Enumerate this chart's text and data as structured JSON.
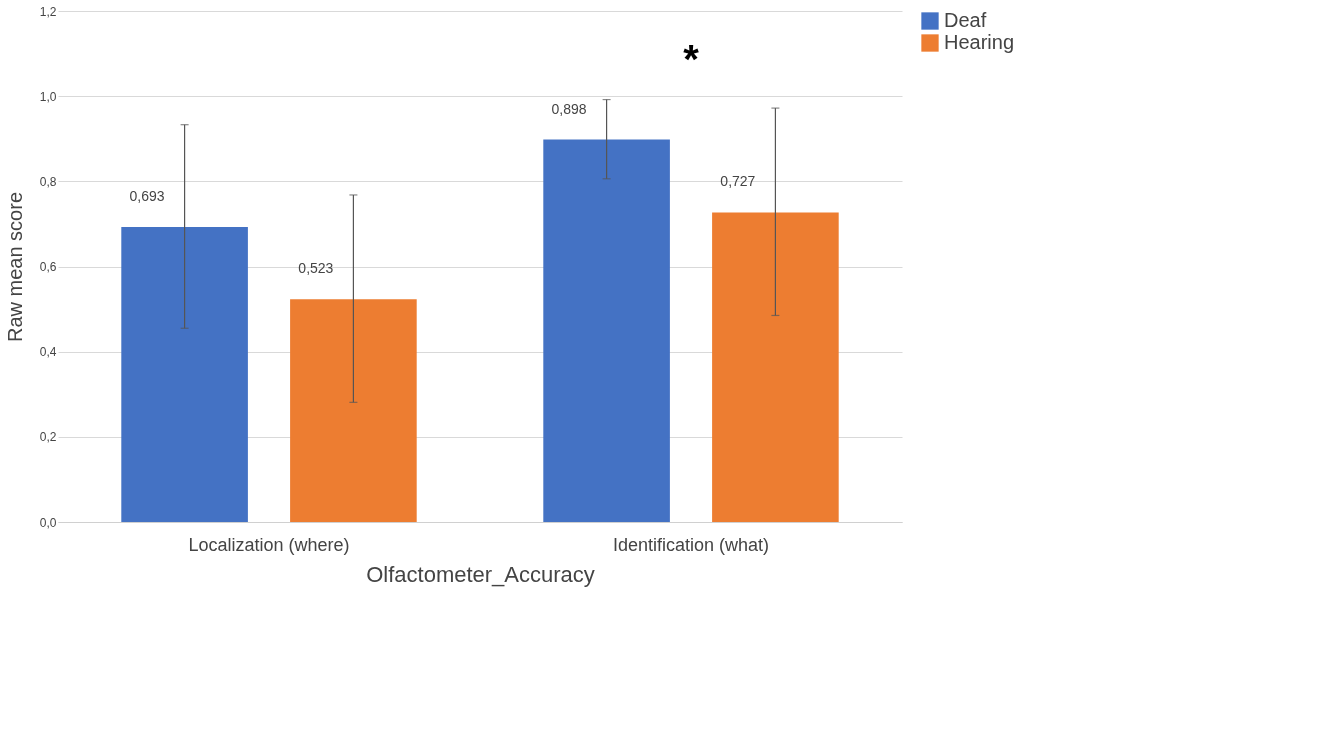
{
  "chart_data": {
    "type": "bar",
    "xlabel": "Olfactometer_Accuracy",
    "ylabel": "Raw mean score",
    "categories": [
      "Localization (where)",
      "Identification (what)"
    ],
    "series": [
      {
        "name": "Deaf",
        "color": "#4472c4",
        "values": [
          0.693,
          0.898
        ],
        "errors": [
          [
            0.455,
            0.933
          ],
          [
            0.806,
            0.992
          ]
        ],
        "value_labels": [
          "0,693",
          "0,898"
        ]
      },
      {
        "name": "Hearing",
        "color": "#ed7d31",
        "values": [
          0.523,
          0.727
        ],
        "errors": [
          [
            0.281,
            0.768
          ],
          [
            0.485,
            0.972
          ]
        ],
        "value_labels": [
          "0,523",
          "0,727"
        ]
      }
    ],
    "ylim": [
      0,
      1.2
    ],
    "yticks": [
      {
        "value": 0,
        "label": "0,0"
      },
      {
        "value": 0.2,
        "label": "0,2"
      },
      {
        "value": 0.4,
        "label": "0,4"
      },
      {
        "value": 0.6,
        "label": "0,6"
      },
      {
        "value": 0.8,
        "label": "0,8"
      },
      {
        "value": 1.0,
        "label": "1,0"
      },
      {
        "value": 1.2,
        "label": "1,2"
      }
    ],
    "grid": "y",
    "legend": "right",
    "annotations": [
      "*"
    ]
  }
}
